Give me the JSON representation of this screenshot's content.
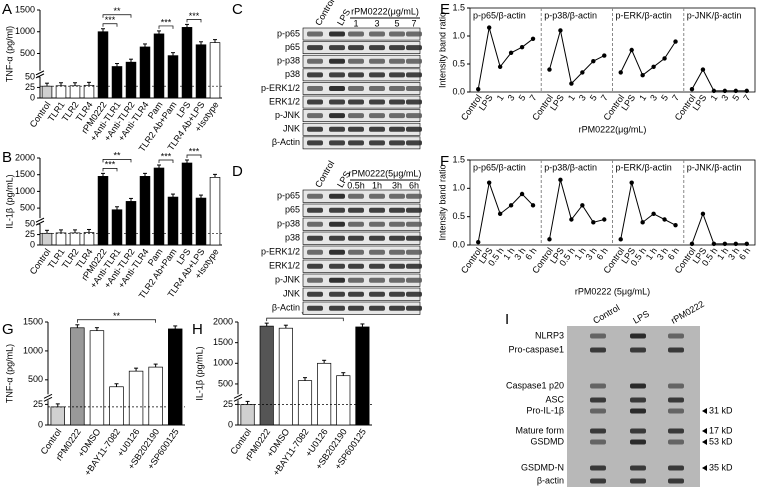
{
  "chart_data": [
    {
      "type": "bar",
      "label": "A",
      "ylabel": "TNF-α (pg/ml)",
      "categories": [
        "Control",
        "TLR1",
        "TLR2",
        "TLR4",
        "rPM0222",
        "+Anti-TLR1",
        "+Anti-TLR2",
        "+Anti-TLR4",
        "Pam",
        "TLR2 Ab+Pam",
        "LPS",
        "TLR4 Ab+LPS",
        "+Isotype"
      ],
      "values": [
        28,
        29,
        29,
        30,
        1000,
        200,
        300,
        650,
        950,
        450,
        1100,
        700,
        750
      ],
      "colors": [
        "#d0d0d0",
        "#ffffff",
        "#ffffff",
        "#ffffff",
        "#000000",
        "#000000",
        "#000000",
        "#000000",
        "#000000",
        "#000000",
        "#000000",
        "#000000",
        "#ffffff"
      ],
      "ylim": [
        0,
        1500
      ],
      "ybreak": [
        50,
        100
      ],
      "yticks": [
        0,
        25,
        50,
        500,
        1000,
        1500
      ],
      "annotations": [
        "**",
        "***",
        "***",
        "***"
      ]
    },
    {
      "type": "bar",
      "label": "B",
      "ylabel": "IL-1β (pg/mL)",
      "categories": [
        "Control",
        "TLR1",
        "TLR2",
        "TLR4",
        "rPM0222",
        "+Anti-TLR1",
        "+Anti-TLR2",
        "+Anti-TLR4",
        "Pam",
        "TLR2 Ab+Pam",
        "LPS",
        "TLR4 Ab+LPS",
        "+Isotype"
      ],
      "values": [
        28,
        29,
        29,
        30,
        1450,
        450,
        700,
        1450,
        1700,
        830,
        1850,
        800,
        1420
      ],
      "colors": [
        "#d0d0d0",
        "#ffffff",
        "#ffffff",
        "#ffffff",
        "#000000",
        "#000000",
        "#000000",
        "#000000",
        "#000000",
        "#000000",
        "#000000",
        "#000000",
        "#ffffff"
      ],
      "ylim": [
        0,
        2000
      ],
      "ybreak": [
        50,
        200
      ],
      "yticks": [
        0,
        25,
        50,
        500,
        1000,
        1500,
        2000
      ],
      "annotations": [
        "**",
        "***",
        "***",
        "***"
      ]
    },
    {
      "type": "line",
      "label": "E",
      "ylabel": "Intensity band ratio",
      "xlabel": "rPM0222(μg/mL)",
      "categories": [
        "Control",
        "LPS",
        "1",
        "3",
        "5",
        "7"
      ],
      "color": "#000000",
      "series": [
        {
          "name": "p-p65/β-actin",
          "values": [
            0.05,
            1.15,
            0.45,
            0.7,
            0.8,
            0.95
          ]
        },
        {
          "name": "p-p38/β-actin",
          "values": [
            0.4,
            1.1,
            0.15,
            0.35,
            0.55,
            0.65
          ]
        },
        {
          "name": "p-ERK/β-actin",
          "values": [
            0.35,
            0.75,
            0.3,
            0.45,
            0.6,
            0.9
          ]
        },
        {
          "name": "p-JNK/β-actin",
          "values": [
            0.05,
            0.4,
            0.02,
            0.02,
            0.02,
            0.02
          ]
        }
      ],
      "ylim": [
        0,
        1.5
      ],
      "yticks": [
        {
          "value": 0,
          "label": "0.0"
        },
        0.5,
        {
          "value": 1,
          "label": "1.0"
        },
        1.5
      ]
    },
    {
      "type": "line",
      "label": "F",
      "ylabel": "Intensity band ratio",
      "xlabel": "rPM0222 (5μg/mL)",
      "categories": [
        "Control",
        "LPS",
        "0.5 h",
        "1 h",
        "3 h",
        "6 h"
      ],
      "color": "#000000",
      "series": [
        {
          "name": "p-p65/β-actin",
          "values": [
            0.05,
            1.1,
            0.55,
            0.7,
            0.9,
            0.7
          ]
        },
        {
          "name": "p-p38/β-actin",
          "values": [
            0.1,
            1.15,
            0.45,
            0.7,
            0.4,
            0.45
          ]
        },
        {
          "name": "p-ERK/β-actin",
          "values": [
            0.1,
            1.1,
            0.4,
            0.55,
            0.45,
            0.35
          ]
        },
        {
          "name": "p-JNK/β-actin",
          "values": [
            0.02,
            0.55,
            0.02,
            0.02,
            0.02,
            0.02
          ]
        }
      ],
      "ylim": [
        0,
        1.5
      ],
      "yticks": [
        {
          "value": 0,
          "label": "0.0"
        },
        0.5,
        {
          "value": 1,
          "label": "1.0"
        },
        1.5
      ]
    },
    {
      "type": "bar",
      "label": "G",
      "ylabel": "TNF-α (pg/mL)",
      "categories": [
        "Control",
        "rPM0222",
        "+DMSO",
        "+BAY11-7082",
        "+U0126",
        "+SB202190",
        "+SP600125"
      ],
      "values": [
        22,
        1400,
        1350,
        380,
        650,
        720,
        1380
      ],
      "colors": [
        "#d0d0d0",
        "#999999",
        "#ffffff",
        "#ffffff",
        "#ffffff",
        "#ffffff",
        "#000000"
      ],
      "ylim": [
        0,
        1500
      ],
      "ybreak": [
        30,
        250
      ],
      "yticks": [
        0,
        25,
        500,
        1000,
        1500
      ],
      "annotations": [
        "**"
      ]
    },
    {
      "type": "bar",
      "label": "H",
      "ylabel": "IL-1β (pg/mL)",
      "categories": [
        "Control",
        "rPM0222",
        "+DMSO",
        "+BAY11-7082",
        "+U0126",
        "+SB202190",
        "+SP600125"
      ],
      "values": [
        25,
        1900,
        1850,
        580,
        1000,
        700,
        1880
      ],
      "colors": [
        "#d0d0d0",
        "#555555",
        "#ffffff",
        "#ffffff",
        "#ffffff",
        "#ffffff",
        "#000000"
      ],
      "ylim": [
        0,
        2000
      ],
      "ybreak": [
        30,
        250
      ],
      "yticks": [
        0,
        25,
        500,
        1000,
        1500,
        2000
      ],
      "annotations": [
        "**"
      ]
    }
  ],
  "blots": [
    {
      "label": "C",
      "lanes": [
        "Control",
        "LPS",
        "1",
        "3",
        "5",
        "7"
      ],
      "treatment": "rPM0222(μg/mL)",
      "rows": [
        "p-p65",
        "p65",
        "p-p38",
        "p38",
        "p-ERK1/2",
        "ERK1/2",
        "p-JNK",
        "JNK",
        "β-Actin"
      ]
    },
    {
      "label": "D",
      "lanes": [
        "Control",
        "LPS",
        "0.5h",
        "1h",
        "3h",
        "6h"
      ],
      "treatment": "rPM0222(5μg/mL)",
      "rows": [
        "p-p65",
        "p65",
        "p-p38",
        "p38",
        "p-ERK1/2",
        "ERK1/2",
        "p-JNK",
        "JNK",
        "β-Actin"
      ]
    },
    {
      "label": "I",
      "lanes": [
        "Control",
        "LPS",
        "rPM0222"
      ],
      "rows": [
        "NLRP3",
        "Pro-caspase1",
        "Caspase1 p20",
        "ASC",
        "Pro-IL-1β",
        "Mature form",
        "GSDMD",
        "GSDMD-N",
        "β-actin"
      ],
      "markers": [
        "31 kD",
        "17 kD",
        "53 kD",
        "35 kD"
      ]
    }
  ]
}
